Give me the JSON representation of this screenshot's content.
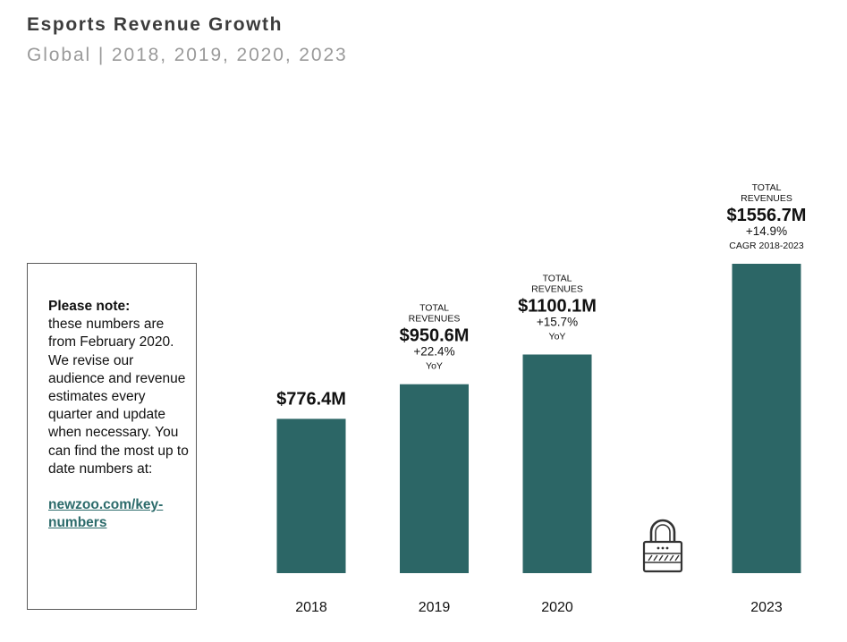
{
  "header": {
    "title": "Esports Revenue Growth",
    "subtitle": "Global | 2018, 2019, 2020, 2023"
  },
  "note": {
    "heading": "Please note:",
    "body": "these numbers are from February 2020. We revise our audience and revenue estimates every quarter and update when necessary. You can find the most up to date numbers at:",
    "link": "newzoo.com/key-numbers"
  },
  "colors": {
    "bar": "#2c6666",
    "text": "#111111",
    "link": "#2c6b6b"
  },
  "icons": {
    "locked_year": "lock-icon"
  },
  "chart_data": {
    "type": "bar",
    "title": "Esports Revenue Growth",
    "subtitle": "Global | 2018, 2019, 2020, 2023",
    "xlabel": "",
    "ylabel": "",
    "ylim": [
      0,
      1556.7
    ],
    "grid": false,
    "categories": [
      "2018",
      "2019",
      "2020",
      "",
      "2023"
    ],
    "values": [
      776.4,
      950.6,
      1100.1,
      null,
      1556.7
    ],
    "bars": [
      {
        "year": "2018",
        "value": 776.4,
        "value_label": "$776.4M",
        "top_label": "",
        "change": "",
        "change_note": ""
      },
      {
        "year": "2019",
        "value": 950.6,
        "value_label": "$950.6M",
        "top_label": "TOTAL REVENUES",
        "change": "+22.4%",
        "change_note": "YoY"
      },
      {
        "year": "2020",
        "value": 1100.1,
        "value_label": "$1100.1M",
        "top_label": "TOTAL REVENUES",
        "change": "+15.7%",
        "change_note": "YoY"
      },
      {
        "year": "",
        "value": null,
        "value_label": "",
        "top_label": "",
        "change": "",
        "change_note": ""
      },
      {
        "year": "2023",
        "value": 1556.7,
        "value_label": "$1556.7M",
        "top_label": "TOTAL REVENUES",
        "change": "+14.9%",
        "change_note": "CAGR 2018-2023"
      }
    ]
  }
}
